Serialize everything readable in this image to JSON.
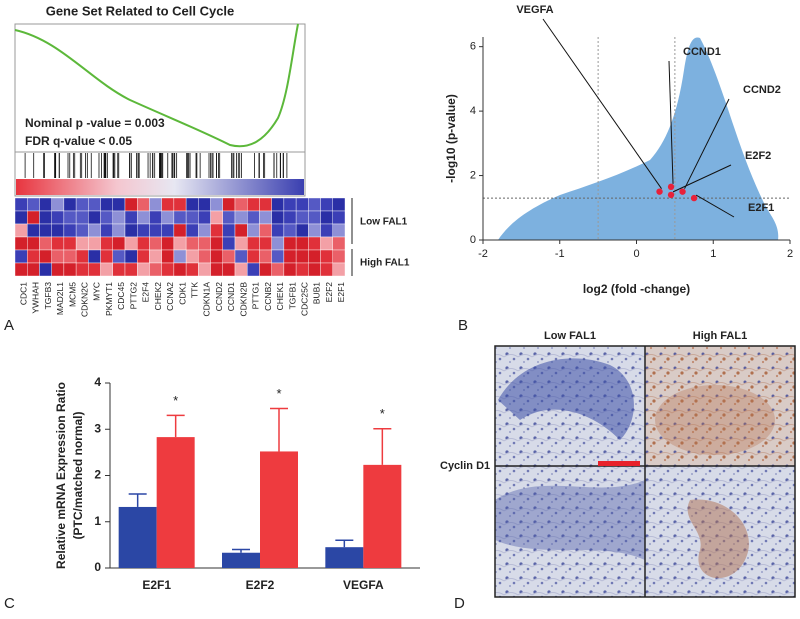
{
  "panels": {
    "a": "A",
    "b": "B",
    "c": "C",
    "d": "D"
  },
  "panel_a": {
    "title": "Gene Set Related to Cell Cycle",
    "stats": [
      "Nominal p -value =  0.003",
      "FDR q-value < 0.05"
    ],
    "groups": [
      "Low FAL1",
      "High FAL1"
    ],
    "genes": [
      "CDC1",
      "YWHAH",
      "TGFB3",
      "MAD2L1",
      "MCM5",
      "CDKN2C",
      "MYC",
      "PKMYT1",
      "CDC45",
      "PTTG2",
      "E2F4",
      "CHEK2",
      "CCNA2",
      "CDK1",
      "TTK",
      "CDKN1A",
      "CCND2",
      "CCND1",
      "CDKN2B",
      "PTTG1",
      "CCNB2",
      "CHEK1",
      "TGFB1",
      "CDC25C",
      "BUB1",
      "E2F2",
      "E2F1"
    ]
  },
  "chart_data": [
    {
      "type": "scatter",
      "xlabel": "log2 (fold -change)",
      "ylabel": "-log10 (p-value)",
      "xlim": [
        -2,
        2
      ],
      "ylim": [
        0,
        6.3
      ],
      "xticks": [
        -2,
        -1,
        0,
        1,
        2
      ],
      "yticks": [
        0,
        2,
        4,
        6
      ],
      "reference_lines": {
        "x": [
          -0.5,
          0.5
        ],
        "y": [
          1.3
        ]
      },
      "cloud_color": "#6fa8dc",
      "color": "#e8213a",
      "labels": [
        "VEGFA",
        "CCND1",
        "CCND2",
        "E2F2",
        "E2F1"
      ],
      "x": [
        0.3,
        0.45,
        0.6,
        0.45,
        0.75
      ],
      "y": [
        1.5,
        1.65,
        1.5,
        1.4,
        1.3
      ]
    },
    {
      "type": "bar",
      "ylabel": [
        "Relative mRNA Expression Ratio",
        "(PTC/matched normal)"
      ],
      "categories": [
        "E2F1",
        "E2F2",
        "VEGFA"
      ],
      "ylim": [
        0,
        4
      ],
      "yticks": [
        0,
        1,
        2,
        3,
        4
      ],
      "series": [
        {
          "color": "#2b47a5",
          "values": [
            1.32,
            0.33,
            0.45
          ],
          "errors": [
            0.28,
            0.07,
            0.15
          ]
        },
        {
          "color": "#ee3b3f",
          "values": [
            2.83,
            2.52,
            2.23
          ],
          "errors": [
            0.47,
            0.93,
            0.78
          ],
          "annotations": [
            "*",
            "*",
            "*"
          ]
        }
      ]
    }
  ],
  "panel_d": {
    "columns": [
      "Low FAL1",
      "High FAL1"
    ],
    "row": "Cyclin D1"
  }
}
